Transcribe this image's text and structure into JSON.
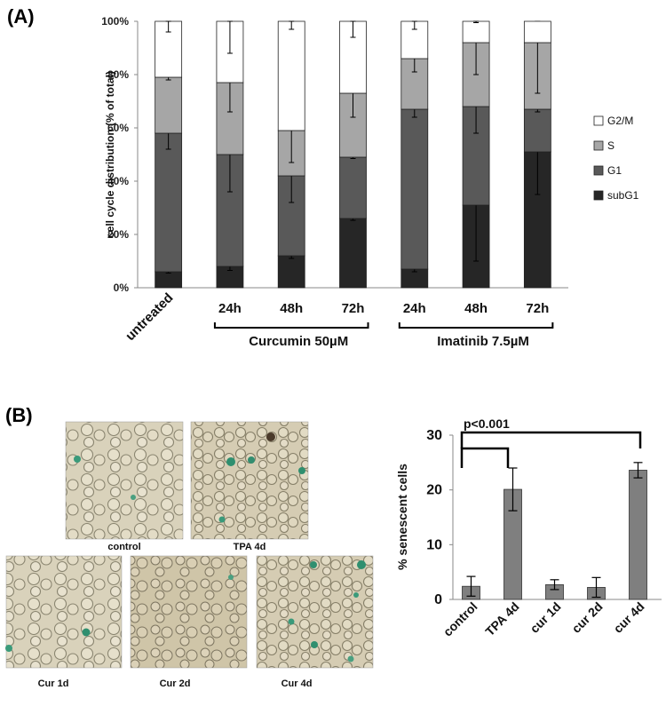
{
  "panels": {
    "a_label": "(A)",
    "b_label": "(B)"
  },
  "chart_data": [
    {
      "type": "bar",
      "stacked": true,
      "ylabel": "cell cycle distribution  (% of total)",
      "ylim": [
        0,
        100
      ],
      "yticks": [
        "0%",
        "20%",
        "40%",
        "60%",
        "80%",
        "100%"
      ],
      "categories": [
        "untreated",
        "24h",
        "48h",
        "72h",
        "24h",
        "48h",
        "72h"
      ],
      "groups": [
        {
          "label": "Curcumin 50µM",
          "from": 1,
          "to": 3
        },
        {
          "label": "Imatinib 7.5µM",
          "from": 4,
          "to": 6
        }
      ],
      "legend_position": "right",
      "series": [
        {
          "name": "subG1",
          "color": "#262626",
          "values": [
            6,
            8,
            12,
            26,
            7,
            31,
            51
          ],
          "err": [
            0.5,
            1.5,
            1,
            0.7,
            1,
            21,
            16
          ]
        },
        {
          "name": "G1",
          "color": "#595959",
          "values": [
            52,
            42,
            30,
            23,
            60,
            37,
            16
          ],
          "err": [
            6,
            14,
            10,
            0.5,
            3,
            10,
            1
          ]
        },
        {
          "name": "S",
          "color": "#a6a6a6",
          "values": [
            21,
            27,
            17,
            24,
            19,
            24,
            25
          ],
          "err": [
            1,
            11,
            12,
            9,
            5,
            12,
            19
          ]
        },
        {
          "name": "G2/M",
          "color": "#ffffff",
          "values": [
            21,
            23,
            41,
            27,
            14,
            8,
            8
          ],
          "err": [
            4,
            12,
            3,
            6,
            3,
            0.5,
            0
          ]
        }
      ]
    },
    {
      "type": "bar",
      "ylabel": "% senescent cells",
      "ylim": [
        0,
        30
      ],
      "yticks": [
        "0",
        "10",
        "20",
        "30"
      ],
      "categories": [
        "control",
        "TPA 4d",
        "cur 1d",
        "cur 2d",
        "cur 4d"
      ],
      "values": [
        2.4,
        20.1,
        2.7,
        2.2,
        23.6
      ],
      "err": [
        1.8,
        3.9,
        0.9,
        1.8,
        1.4
      ],
      "bar_color": "#7f7f7f",
      "annotation": "p<0.001"
    }
  ],
  "micrographs": [
    {
      "caption": "control"
    },
    {
      "caption": "TPA 4d"
    },
    {
      "caption": "Cur 1d"
    },
    {
      "caption": "Cur 2d"
    },
    {
      "caption": "Cur 4d"
    }
  ]
}
